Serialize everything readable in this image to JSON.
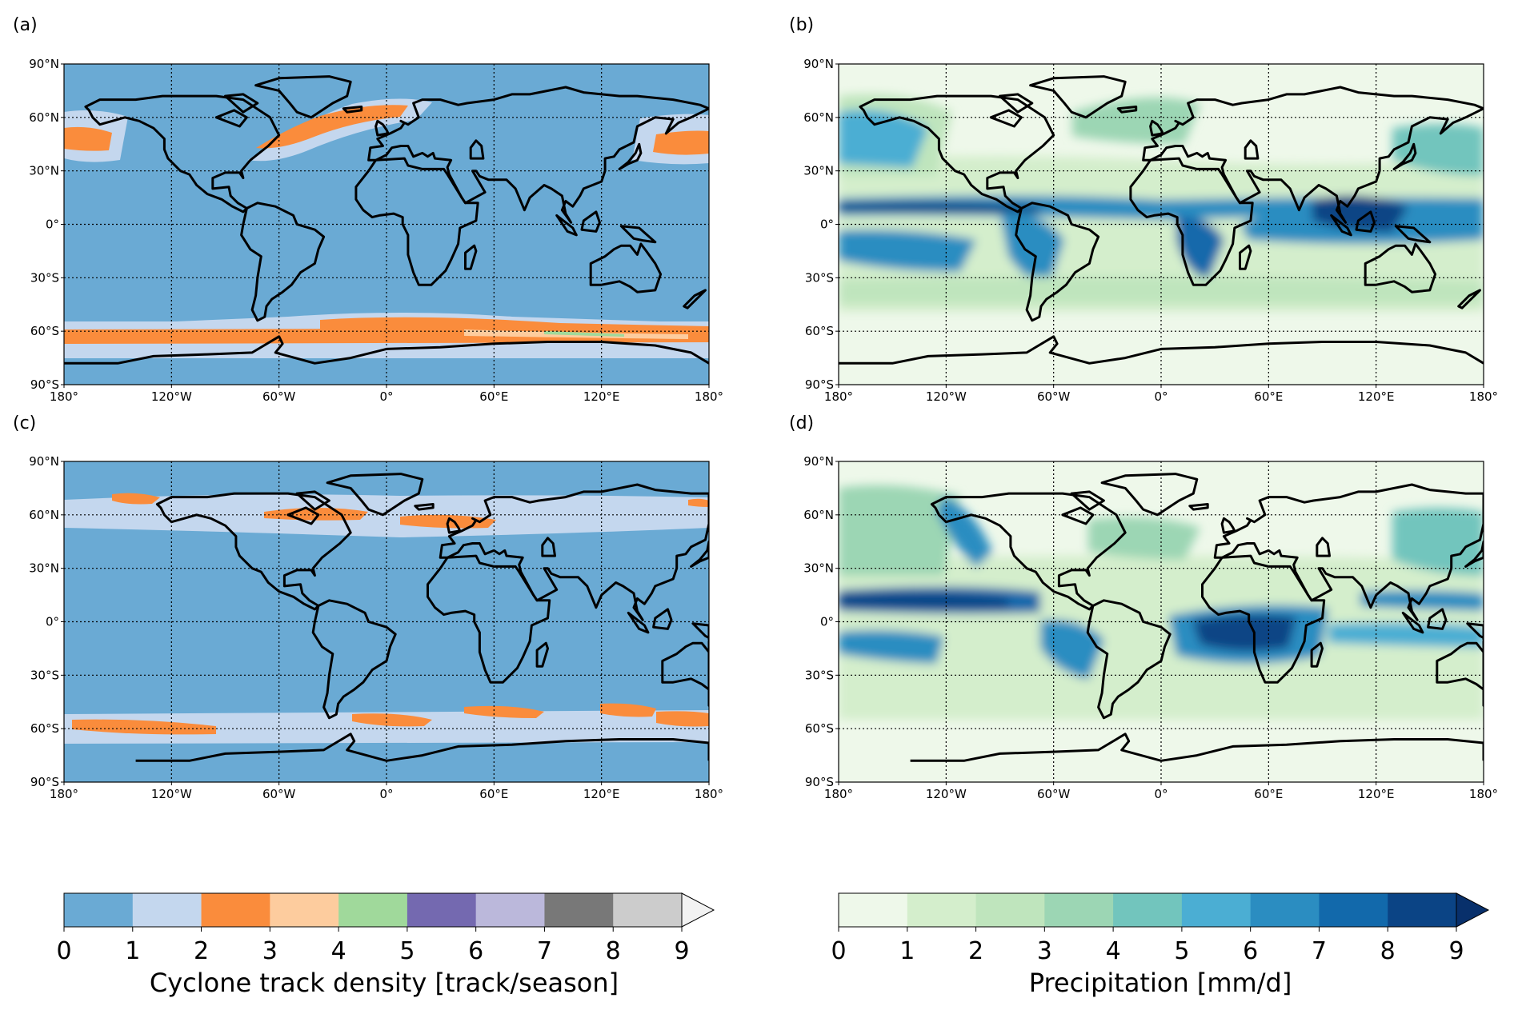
{
  "panels": [
    {
      "label": "(a)",
      "field": "track"
    },
    {
      "label": "(b)",
      "field": "precip"
    },
    {
      "label": "(c)",
      "field": "track"
    },
    {
      "label": "(d)",
      "field": "precip"
    }
  ],
  "axes": {
    "lon_ticks": [
      "180°",
      "120°W",
      "60°W",
      "0°",
      "60°E",
      "120°E",
      "180°"
    ],
    "lat_ticks": [
      "90°N",
      "60°N",
      "30°N",
      "0°",
      "30°S",
      "60°S",
      "90°S"
    ],
    "lon_range": [
      -180,
      180
    ],
    "lat_range": [
      -90,
      90
    ],
    "gridlines": "dotted"
  },
  "colorbars": [
    {
      "label": "Cyclone track density [track/season]",
      "ticks": [
        "0",
        "1",
        "2",
        "3",
        "4",
        "5",
        "6",
        "7",
        "8",
        "9"
      ],
      "colors": [
        "#6aaad4",
        "#c4d7ee",
        "#fa8c3c",
        "#fdcc9e",
        "#a0d99b",
        "#7469b0",
        "#bbb8db",
        "#787878",
        "#cccccc"
      ],
      "extend_color": "#f2f2f2",
      "extend": "max"
    },
    {
      "label": "Precipitation [mm/d]",
      "ticks": [
        "0",
        "1",
        "2",
        "3",
        "4",
        "5",
        "6",
        "7",
        "8",
        "9"
      ],
      "colors": [
        "#eef8ea",
        "#d4eecc",
        "#bfe5bd",
        "#9cd6b4",
        "#72c5bd",
        "#4baed3",
        "#2b8dc1",
        "#1269ab",
        "#0b4485"
      ],
      "extend_color": "#08306b",
      "extend": "max"
    }
  ],
  "colors": {
    "coastline": "#000000",
    "track_background": "#6aaad4",
    "precip_background": "#eef8ea"
  }
}
